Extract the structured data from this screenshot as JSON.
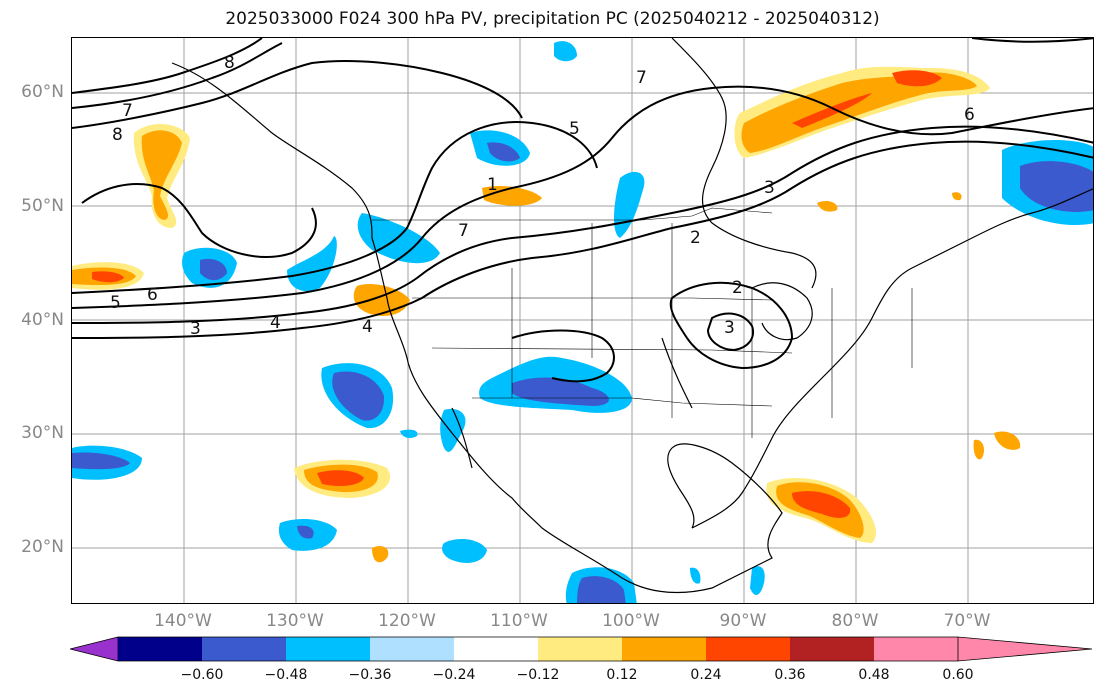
{
  "title": "2025033000 F024 300 hPa PV, precipitation PC (2025040212 - 2025040312)",
  "lat_labels": [
    "60°N",
    "50°N",
    "40°N",
    "30°N",
    "20°N"
  ],
  "lon_labels": [
    "140°W",
    "130°W",
    "120°W",
    "110°W",
    "100°W",
    "90°W",
    "80°W",
    "70°W"
  ],
  "colorbar": {
    "ticks": [
      "−0.60",
      "−0.48",
      "−0.36",
      "−0.24",
      "−0.12",
      "0.12",
      "0.24",
      "0.36",
      "0.48",
      "0.60"
    ],
    "colors": [
      "#9932cc",
      "#00008b",
      "#3a5acd",
      "#00bfff",
      "#b0e0ff",
      "#ffffff",
      "#ffeb80",
      "#ffa500",
      "#ff4500",
      "#b22222",
      "#ff88aa"
    ]
  },
  "contour_labels": [
    "8",
    "7",
    "6",
    "5",
    "4",
    "3",
    "2",
    "1"
  ],
  "map_extent": {
    "lon": [
      -150,
      -58
    ],
    "lat": [
      15,
      65
    ]
  }
}
